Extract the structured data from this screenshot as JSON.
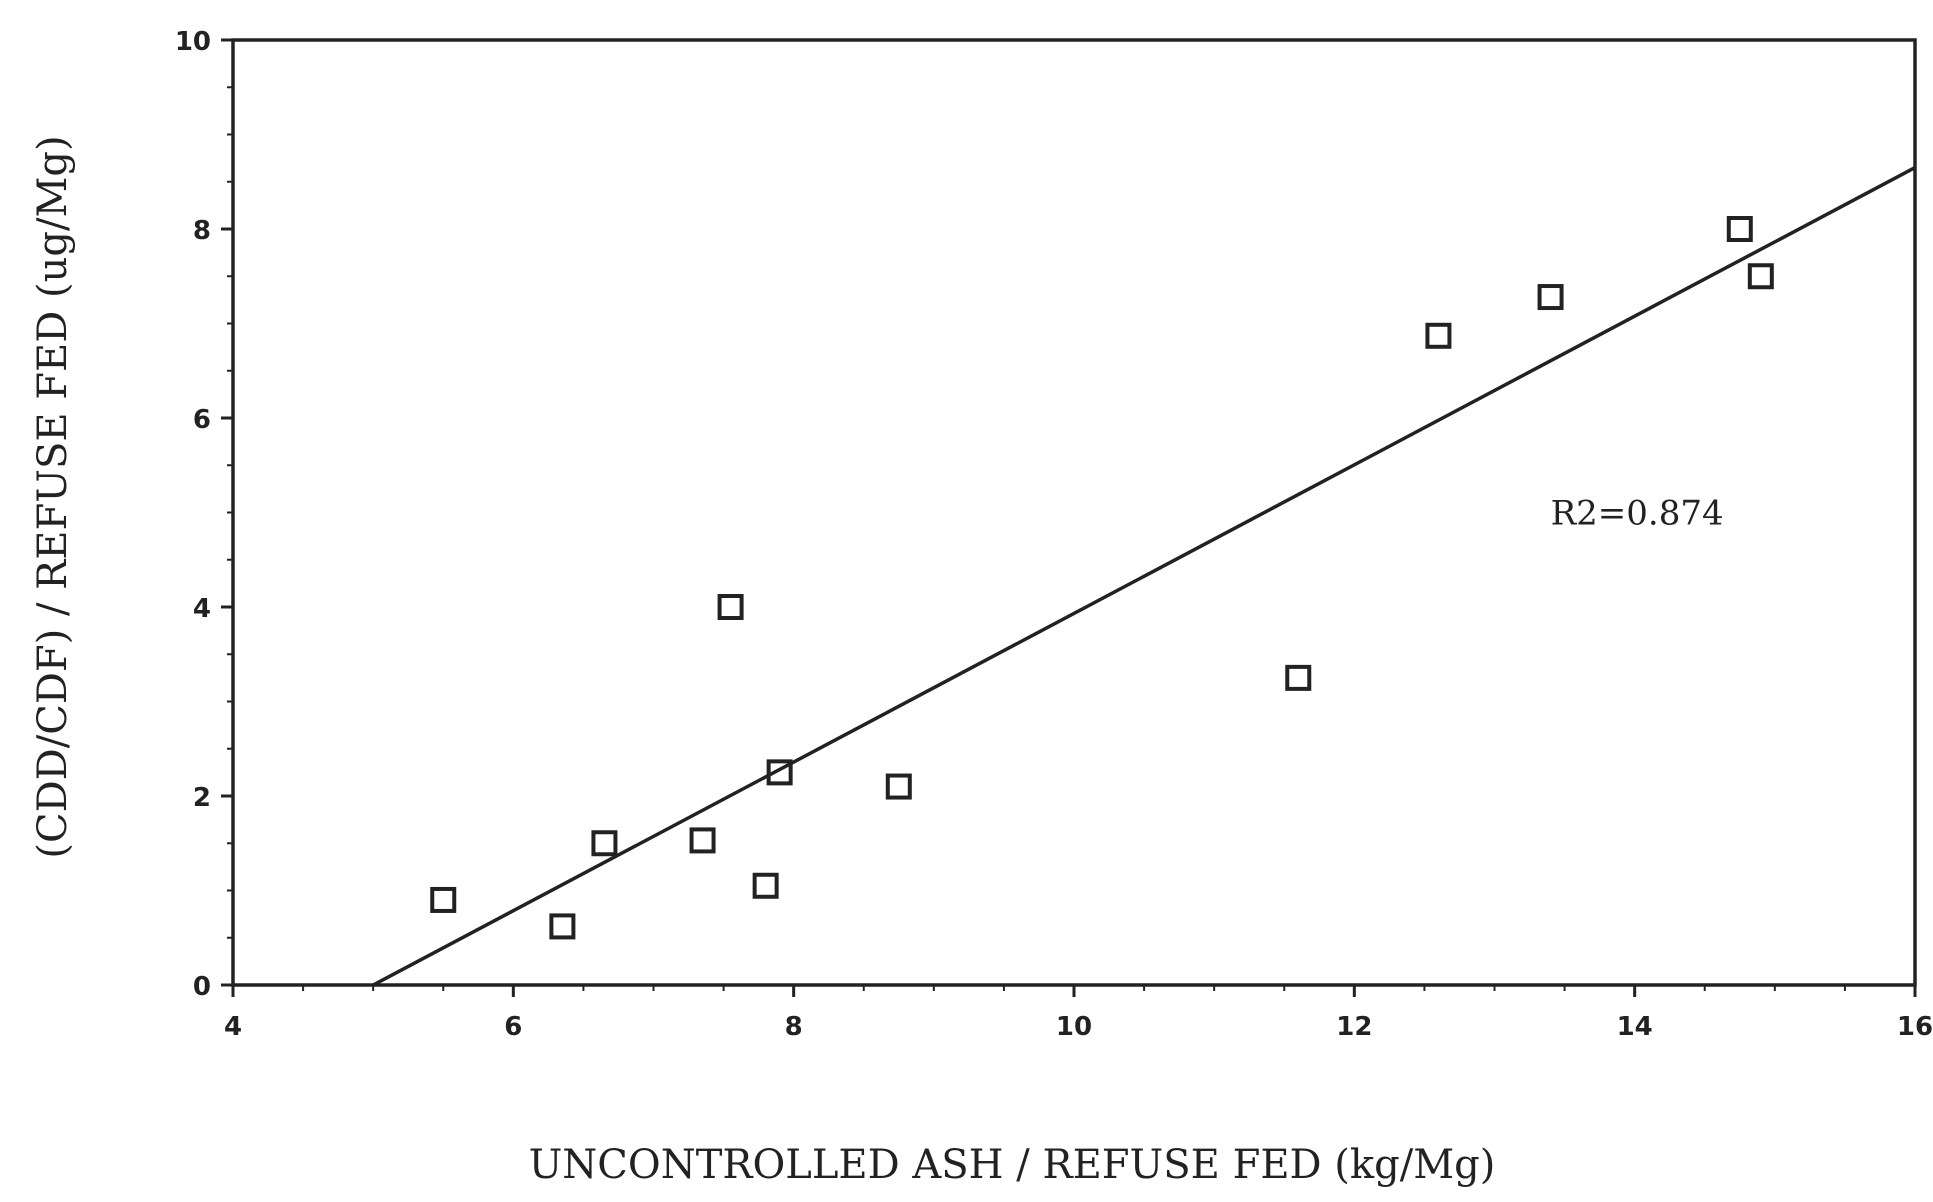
{
  "chart_data": {
    "type": "scatter",
    "title": "",
    "xlabel": "UNCONTROLLED ASH / REFUSE FED (kg/Mg)",
    "ylabel": "(CDD/CDF) / REFUSE FED (ug/Mg)",
    "xlim": [
      4,
      16
    ],
    "ylim": [
      0,
      10
    ],
    "x_ticks": [
      4,
      6,
      8,
      10,
      12,
      14,
      16
    ],
    "y_ticks": [
      0,
      2,
      4,
      6,
      8,
      10
    ],
    "x_tick_labels": [
      "4",
      "6",
      "8",
      "10",
      "12",
      "14",
      "16"
    ],
    "y_tick_labels": [
      "0",
      "2",
      "4",
      "6",
      "8",
      "10"
    ],
    "grid": false,
    "marker": "open-square",
    "series": [
      {
        "x": [
          5.5,
          6.35,
          6.65,
          7.35,
          7.55,
          7.8,
          7.9,
          8.75,
          11.6,
          12.6,
          13.4,
          14.75,
          14.9
        ],
        "y": [
          0.9,
          0.62,
          1.5,
          1.53,
          4.0,
          1.05,
          2.25,
          2.1,
          3.25,
          6.87,
          7.28,
          8.0,
          7.5
        ]
      }
    ],
    "trendline": {
      "x": [
        5.0,
        16.0
      ],
      "y": [
        0.0,
        8.65
      ]
    },
    "annotations": [
      {
        "text": "R2=0.874",
        "x": 13.4,
        "y": 5.0
      }
    ],
    "colors": {
      "marks": "#222222",
      "background": "#ffffff"
    }
  }
}
